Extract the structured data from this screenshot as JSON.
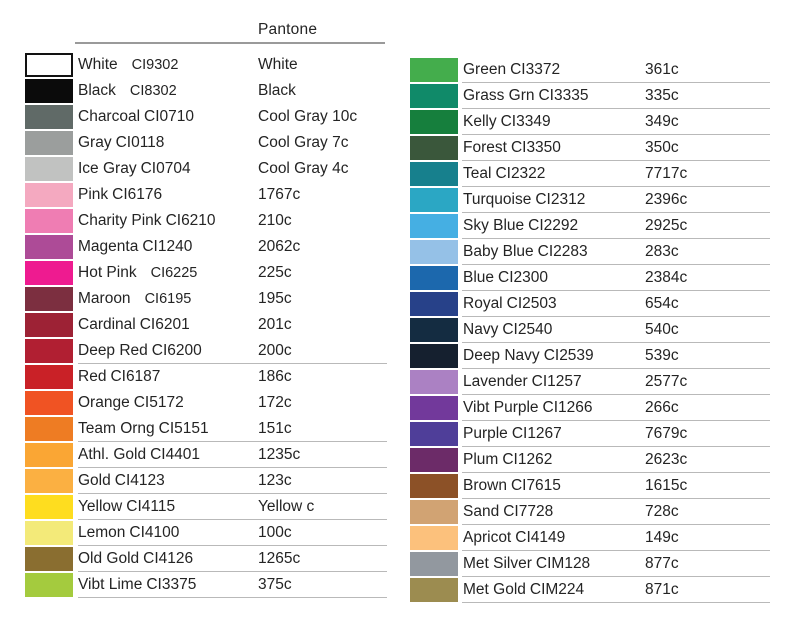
{
  "header": {
    "title": "Pantone"
  },
  "styles": {
    "row_divider_color": "#b9b9b9",
    "header_rule_color": "#9a9a9a",
    "text_color": "#242424",
    "background": "#ffffff"
  },
  "columns": [
    {
      "name": "left",
      "rows": [
        {
          "name": "White",
          "code": "CI9302",
          "pantone": "White",
          "hex": "#ffffff",
          "border": true,
          "wide_gap": true,
          "underline": false
        },
        {
          "name": "Black",
          "code": "CI8302",
          "pantone": "Black",
          "hex": "#0b0b0b",
          "wide_gap": true,
          "underline": false
        },
        {
          "name": "Charcoal",
          "code": "CI0710",
          "pantone": "Cool Gray 10c",
          "hex": "#606a67",
          "underline": false
        },
        {
          "name": "Gray",
          "code": "CI0118",
          "pantone": "Cool Gray 7c",
          "hex": "#9b9e9d",
          "underline": false
        },
        {
          "name": "Ice Gray",
          "code": "CI0704",
          "pantone": "Cool Gray 4c",
          "hex": "#c1c2c1",
          "underline": false
        },
        {
          "name": "Pink",
          "code": "CI6176",
          "pantone": "1767c",
          "hex": "#f4a9c0",
          "underline": false
        },
        {
          "name": "Charity Pink",
          "code": "CI6210",
          "pantone": "210c",
          "hex": "#ef7db3",
          "underline": false
        },
        {
          "name": "Magenta",
          "code": "CI1240",
          "pantone": "2062c",
          "hex": "#ad4b97",
          "underline": false
        },
        {
          "name": "Hot Pink",
          "code": "CI6225",
          "pantone": "225c",
          "hex": "#ee1b90",
          "wide_gap": true,
          "underline": false
        },
        {
          "name": "Maroon",
          "code": "CI6195",
          "pantone": "195c",
          "hex": "#7c2f40",
          "wide_gap": true,
          "underline": false
        },
        {
          "name": "Cardinal",
          "code": "CI6201",
          "pantone": "201c",
          "hex": "#9d2235",
          "underline": false
        },
        {
          "name": "Deep Red",
          "code": "CI6200",
          "pantone": "200c",
          "hex": "#b11f32",
          "underline": true
        },
        {
          "name": "Red",
          "code": "CI6187",
          "pantone": "186c",
          "hex": "#c92127",
          "underline": false
        },
        {
          "name": "Orange",
          "code": "CI5172",
          "pantone": "172c",
          "hex": "#f05323",
          "underline": false
        },
        {
          "name": "Team Orng",
          "code": "CI5151",
          "pantone": "151c",
          "hex": "#ee7c23",
          "underline": true
        },
        {
          "name": "Athl. Gold",
          "code": "CI4401",
          "pantone": "1235c",
          "hex": "#faa634",
          "underline": true
        },
        {
          "name": "Gold",
          "code": "CI4123",
          "pantone": "123c",
          "hex": "#fbb042",
          "underline": true
        },
        {
          "name": "Yellow",
          "code": "CI4115",
          "pantone": "Yellow c",
          "hex": "#fedd1f",
          "underline": true
        },
        {
          "name": "Lemon",
          "code": "CI4100",
          "pantone": "100c",
          "hex": "#f3ea79",
          "underline": true
        },
        {
          "name": "Old Gold",
          "code": "CI4126",
          "pantone": "1265c",
          "hex": "#8a6e30",
          "underline": true
        },
        {
          "name": "Vibt Lime",
          "code": "CI3375",
          "pantone": "375c",
          "hex": "#a4cb3e",
          "underline": true
        }
      ]
    },
    {
      "name": "right",
      "rows": [
        {
          "name": "Green",
          "code": "CI3372",
          "pantone": "361c",
          "hex": "#44ad4c",
          "underline": true
        },
        {
          "name": "Grass Grn",
          "code": "CI3335",
          "pantone": "335c",
          "hex": "#108a69",
          "underline": true
        },
        {
          "name": "Kelly",
          "code": "CI3349",
          "pantone": "349c",
          "hex": "#167f3d",
          "underline": true
        },
        {
          "name": "Forest",
          "code": "CI3350",
          "pantone": "350c",
          "hex": "#3a573b",
          "underline": true
        },
        {
          "name": "Teal",
          "code": "CI2322",
          "pantone": "7717c",
          "hex": "#17808d",
          "underline": true
        },
        {
          "name": "Turquoise",
          "code": "CI2312",
          "pantone": "2396c",
          "hex": "#2ba7c4",
          "underline": true
        },
        {
          "name": "Sky Blue",
          "code": "CI2292",
          "pantone": "2925c",
          "hex": "#45afe3",
          "underline": true
        },
        {
          "name": "Baby Blue",
          "code": "CI2283",
          "pantone": "283c",
          "hex": "#95c1e7",
          "underline": true
        },
        {
          "name": "Blue",
          "code": "CI2300",
          "pantone": "2384c",
          "hex": "#1c68ad",
          "underline": true
        },
        {
          "name": "Royal",
          "code": "CI2503",
          "pantone": "654c",
          "hex": "#274189",
          "underline": true
        },
        {
          "name": "Navy",
          "code": "CI2540",
          "pantone": "540c",
          "hex": "#142c41",
          "underline": true
        },
        {
          "name": "Deep Navy",
          "code": "CI2539",
          "pantone": "539c",
          "hex": "#15202f",
          "underline": true
        },
        {
          "name": "Lavender",
          "code": "CI1257",
          "pantone": "2577c",
          "hex": "#ab81c3",
          "underline": true
        },
        {
          "name": "Vibt Purple",
          "code": "CI1266",
          "pantone": "266c",
          "hex": "#72399b",
          "underline": true
        },
        {
          "name": "Purple",
          "code": "CI1267",
          "pantone": "7679c",
          "hex": "#4f3e99",
          "underline": true
        },
        {
          "name": "Plum",
          "code": "CI1262",
          "pantone": "2623c",
          "hex": "#6c2b68",
          "underline": true
        },
        {
          "name": "Brown",
          "code": "CI7615",
          "pantone": "1615c",
          "hex": "#8c5127",
          "underline": true
        },
        {
          "name": "Sand",
          "code": "CI7728",
          "pantone": "728c",
          "hex": "#d1a373",
          "underline": true
        },
        {
          "name": "Apricot",
          "code": "CI4149",
          "pantone": "149c",
          "hex": "#fcc17c",
          "underline": true
        },
        {
          "name": "Met Silver",
          "code": "CIM128",
          "pantone": "877c",
          "hex": "#92989f",
          "underline": true
        },
        {
          "name": "Met Gold",
          "code": "CIM224",
          "pantone": "871c",
          "hex": "#9c8c50",
          "underline": true
        }
      ]
    }
  ]
}
